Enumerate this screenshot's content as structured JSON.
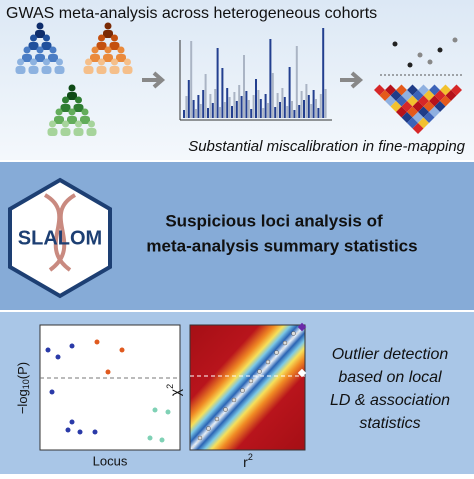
{
  "header": {
    "title": "GWAS meta-analysis across heterogeneous cohorts",
    "subtitle": "Substantial miscalibration in fine-mapping"
  },
  "logo": {
    "text": "SLALOM"
  },
  "method": {
    "lines": [
      "Suspicious loci analysis of",
      "meta-analysis summary statistics"
    ]
  },
  "left_plot": {
    "y_label": {
      "text": "−log",
      "sub": "10",
      "suffix": "(P)"
    },
    "x_label": "Locus"
  },
  "right_plot": {
    "y_label": {
      "text": "χ",
      "sup": "2"
    },
    "x_label": {
      "text": "r",
      "sup": "2"
    }
  },
  "conclusion": {
    "lines": [
      "Outlier detection",
      "based on local",
      "LD & association",
      "statistics"
    ]
  }
}
